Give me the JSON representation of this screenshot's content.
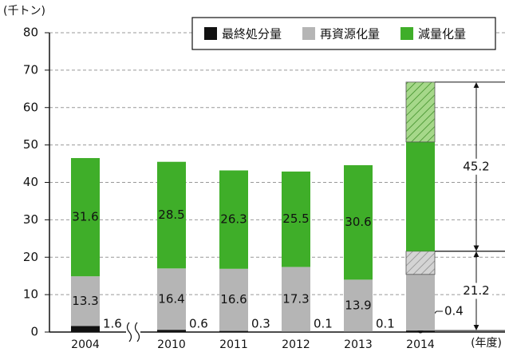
{
  "chart_data": {
    "type": "stacked_bar",
    "y_unit_label": "(千トン)",
    "x_unit_label": "(年度)",
    "categories": [
      "2004",
      "2010",
      "2011",
      "2012",
      "2013",
      "2014"
    ],
    "ylim": [
      0,
      80
    ],
    "yticks": [
      0,
      10,
      20,
      30,
      40,
      50,
      60,
      70,
      80
    ],
    "grid": true,
    "legend": "top-right",
    "series": [
      {
        "name": "最終処分量",
        "color": "#111111",
        "values": [
          1.6,
          0.6,
          0.3,
          0.1,
          0.1,
          0.4
        ],
        "show_labels": [
          true,
          true,
          true,
          true,
          true,
          true
        ],
        "label_position": "outside"
      },
      {
        "name": "再資源化量",
        "color": "#b5b5b5",
        "values": [
          13.3,
          16.4,
          16.6,
          17.3,
          13.9,
          15.0
        ],
        "show_labels": [
          true,
          true,
          true,
          true,
          true,
          false
        ],
        "label_position": "inside"
      },
      {
        "color": "#d4d4d4",
        "pattern": "hatch",
        "values": [
          null,
          null,
          null,
          null,
          null,
          6.2
        ]
      },
      {
        "name": "減量化量",
        "color": "#3fae29",
        "values": [
          31.6,
          28.5,
          26.3,
          25.5,
          30.6,
          29.2
        ],
        "show_labels": [
          true,
          true,
          true,
          true,
          true,
          false
        ],
        "label_position": "inside"
      },
      {
        "color": "#a6d88a",
        "pattern": "hatch",
        "values": [
          null,
          null,
          null,
          null,
          null,
          16.0
        ]
      }
    ],
    "annotations": [
      {
        "text": "45.2",
        "range": [
          21.6,
          66.8
        ]
      },
      {
        "text": "21.2",
        "range": [
          0.4,
          21.6
        ]
      }
    ]
  }
}
